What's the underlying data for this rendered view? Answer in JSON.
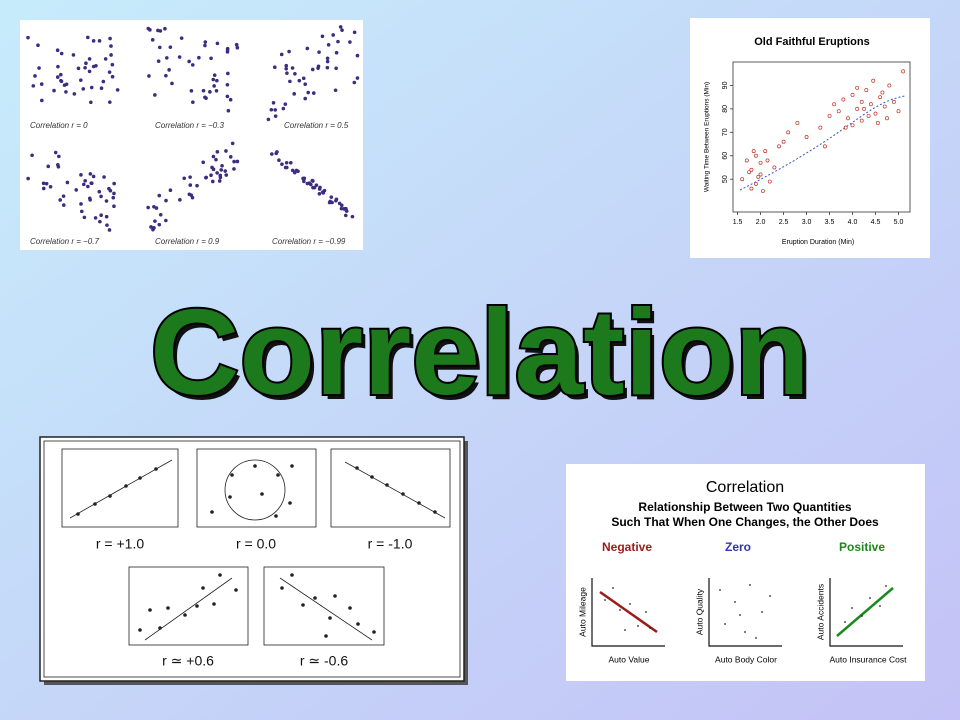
{
  "title": "Correlation",
  "examples_grid": {
    "captions": [
      "Correlation r = 0",
      "Correlation r = −0.3",
      "Correlation r = 0.5",
      "Correlation r = −0.7",
      "Correlation r = 0.9",
      "Correlation r = −0.99"
    ]
  },
  "chart_data": {
    "type": "scatter",
    "title": "Old Faithful Eruptions",
    "x_label": "Eruption Duration (Min)",
    "y_label": "Waiting Time Between Eruptions (Min)",
    "color": "#c0392b",
    "xlim": [
      1.4,
      5.25
    ],
    "ylim": [
      36,
      100
    ],
    "xticks": [
      1.5,
      {
        "value": 2,
        "label": "2.0"
      },
      2.5,
      {
        "value": 3,
        "label": "3.0"
      },
      3.5,
      {
        "value": 4,
        "label": "4.0"
      },
      4.5,
      {
        "value": 5,
        "label": "5.0"
      }
    ],
    "yticks": [
      50,
      60,
      70,
      80,
      90
    ],
    "x": [
      1.8,
      1.9,
      2.0,
      1.7,
      2.1,
      1.8,
      2.3,
      1.6,
      2.0,
      1.9,
      2.2,
      1.75,
      2.4,
      2.05,
      1.85,
      2.15,
      1.95,
      2.5,
      2.6,
      3.0,
      3.3,
      3.5,
      3.6,
      3.7,
      3.8,
      3.9,
      4.0,
      4.1,
      4.2,
      4.3,
      4.4,
      4.5,
      4.6,
      4.7,
      4.8,
      4.0,
      4.2,
      4.35,
      4.45,
      4.55,
      4.65,
      3.85,
      4.1,
      4.25,
      4.75,
      4.9,
      5.0,
      5.1,
      3.4,
      2.8
    ],
    "y": [
      54,
      48,
      52,
      58,
      62,
      46,
      55,
      50,
      57,
      60,
      49,
      53,
      64,
      45,
      62,
      58,
      51,
      66,
      70,
      68,
      72,
      77,
      82,
      79,
      84,
      76,
      86,
      80,
      75,
      88,
      82,
      78,
      85,
      81,
      90,
      73,
      83,
      77,
      92,
      74,
      87,
      72,
      89,
      80,
      76,
      83,
      79,
      96,
      64,
      74
    ]
  },
  "r_examples": {
    "captions": [
      "r = +1.0",
      "r = 0.0",
      "r = -1.0",
      "r ≃ +0.6",
      "r ≃ -0.6"
    ]
  },
  "definition": {
    "title": "Correlation",
    "subtitle_lines": [
      "Relationship Between Two Quantities",
      "Such That When One Changes, the Other Does"
    ],
    "columns": [
      {
        "heading": "Negative",
        "y_label": "Auto Mileage",
        "x_label": "Auto Value"
      },
      {
        "heading": "Zero",
        "y_label": "Auto Quality",
        "x_label": "Auto Body Color"
      },
      {
        "heading": "Positive",
        "y_label": "Auto Accidents",
        "x_label": "Auto Insurance Cost"
      }
    ]
  }
}
